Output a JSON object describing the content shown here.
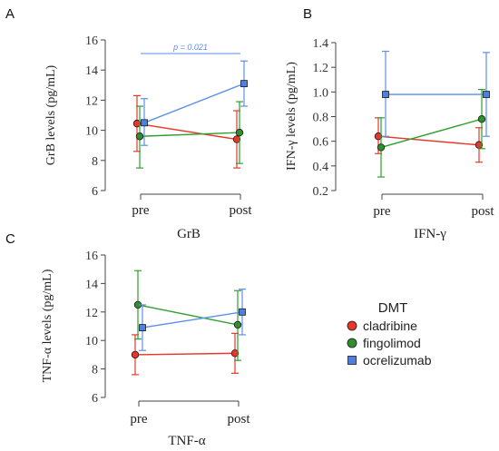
{
  "colors": {
    "cladribine": "#e8372a",
    "fingolimod": "#2ca02c",
    "ocrelizumab": "#5b8fe8",
    "cladribine_fill": "#e8372a",
    "fingolimod_fill": "#2f8f2f",
    "ocrelizumab_fill": "#4f7fe0",
    "annotation": "#5b8fe8",
    "axis": "#444444"
  },
  "legend": {
    "title": "DMT",
    "items": [
      {
        "key": "cladribine",
        "label": "cladribine",
        "marker": "circle"
      },
      {
        "key": "fingolimod",
        "label": "fingolimod",
        "marker": "circle"
      },
      {
        "key": "ocrelizumab",
        "label": "ocrelizumab",
        "marker": "square"
      }
    ]
  },
  "chart_data": [
    {
      "panel": "A",
      "type": "line",
      "categories": [
        "pre",
        "post"
      ],
      "xlabel": "GrB",
      "ylabel": "GrB levels (pg/mL)",
      "ylim": [
        6,
        16
      ],
      "yticks": [
        "6",
        "8",
        "10",
        "12",
        "14",
        "16"
      ],
      "annotation": "p = 0.021",
      "series": [
        {
          "name": "cladribine",
          "values": [
            10.45,
            9.4
          ],
          "err_low": [
            8.6,
            7.5
          ],
          "err_high": [
            12.3,
            11.3
          ]
        },
        {
          "name": "fingolimod",
          "values": [
            9.6,
            9.85
          ],
          "err_low": [
            7.5,
            7.8
          ],
          "err_high": [
            11.6,
            11.9
          ]
        },
        {
          "name": "ocrelizumab",
          "values": [
            10.5,
            13.1
          ],
          "err_low": [
            9.0,
            11.6
          ],
          "err_high": [
            12.1,
            14.6
          ]
        }
      ]
    },
    {
      "panel": "B",
      "type": "line",
      "categories": [
        "pre",
        "post"
      ],
      "xlabel": "IFN-γ",
      "ylabel": "IFN-γ levels (pg/mL)",
      "ylim": [
        0.2,
        1.4
      ],
      "yticks": [
        "0.2",
        "0.4",
        "0.6",
        "0.8",
        "1.0",
        "1.2",
        "1.4"
      ],
      "series": [
        {
          "name": "cladribine",
          "values": [
            0.64,
            0.57
          ],
          "err_low": [
            0.5,
            0.43
          ],
          "err_high": [
            0.79,
            0.71
          ]
        },
        {
          "name": "fingolimod",
          "values": [
            0.55,
            0.78
          ],
          "err_low": [
            0.31,
            0.54
          ],
          "err_high": [
            0.79,
            1.02
          ]
        },
        {
          "name": "ocrelizumab",
          "values": [
            0.98,
            0.98
          ],
          "err_low": [
            0.64,
            0.64
          ],
          "err_high": [
            1.33,
            1.32
          ]
        }
      ]
    },
    {
      "panel": "C",
      "type": "line",
      "categories": [
        "pre",
        "post"
      ],
      "xlabel": "TNF-α",
      "ylabel": "TNF-α levels (pg/mL)",
      "ylim": [
        6,
        16
      ],
      "yticks": [
        "6",
        "8",
        "10",
        "12",
        "14",
        "16"
      ],
      "series": [
        {
          "name": "cladribine",
          "values": [
            9.0,
            9.1
          ],
          "err_low": [
            7.6,
            7.7
          ],
          "err_high": [
            10.4,
            10.5
          ]
        },
        {
          "name": "fingolimod",
          "values": [
            12.5,
            11.1
          ],
          "err_low": [
            10.1,
            8.6
          ],
          "err_high": [
            14.9,
            13.5
          ]
        },
        {
          "name": "ocrelizumab",
          "values": [
            10.9,
            12.0
          ],
          "err_low": [
            9.3,
            10.4
          ],
          "err_high": [
            12.5,
            13.6
          ]
        }
      ]
    }
  ]
}
